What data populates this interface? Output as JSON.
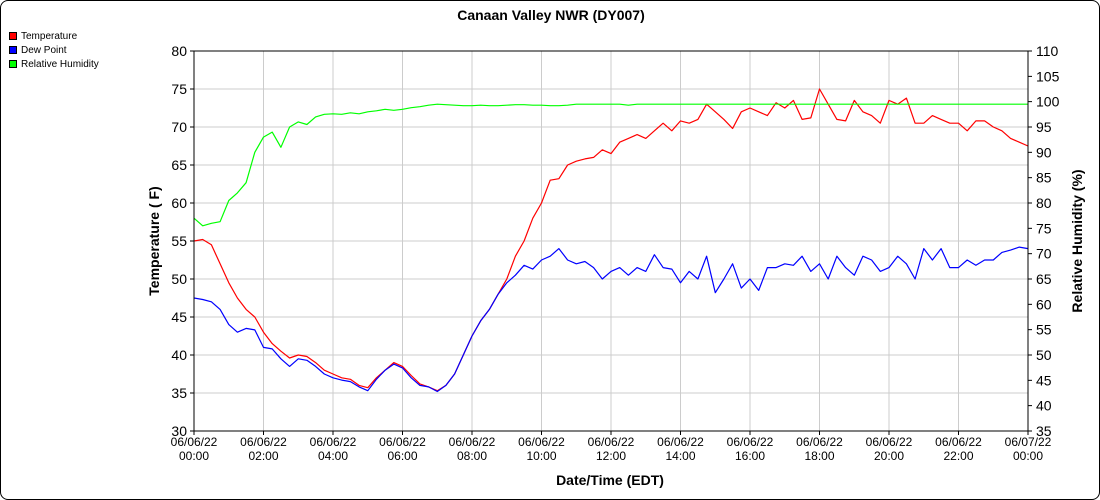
{
  "chart_data": {
    "type": "line",
    "title": "Canaan Valley NWR (DY007)",
    "xlabel": "Date/Time (EDT)",
    "ylabel_left": "Temperature ( F)",
    "ylabel_right": "Relative Humidity (%)",
    "ylim_left": [
      30,
      80
    ],
    "ylim_right": [
      35,
      110
    ],
    "yticks_left": [
      "30",
      "35",
      "40",
      "45",
      "50",
      "55",
      "60",
      "65",
      "70",
      "75",
      "80"
    ],
    "yticks_right": [
      "35",
      "40",
      "45",
      "50",
      "55",
      "60",
      "65",
      "70",
      "75",
      "80",
      "85",
      "90",
      "95",
      "100",
      "105",
      "110"
    ],
    "x_ticks": [
      [
        "06/06/22",
        "00:00"
      ],
      [
        "06/06/22",
        "02:00"
      ],
      [
        "06/06/22",
        "04:00"
      ],
      [
        "06/06/22",
        "06:00"
      ],
      [
        "06/06/22",
        "08:00"
      ],
      [
        "06/06/22",
        "10:00"
      ],
      [
        "06/06/22",
        "12:00"
      ],
      [
        "06/06/22",
        "14:00"
      ],
      [
        "06/06/22",
        "16:00"
      ],
      [
        "06/06/22",
        "18:00"
      ],
      [
        "06/06/22",
        "20:00"
      ],
      [
        "06/06/22",
        "22:00"
      ],
      [
        "06/07/22",
        "00:00"
      ]
    ],
    "x_range_hours": [
      0,
      24
    ],
    "grid": true,
    "legend_position": "top-left",
    "series": [
      {
        "name": "Temperature",
        "axis": "left",
        "color": "#ff0000",
        "points": [
          [
            0,
            55
          ],
          [
            0.25,
            55.2
          ],
          [
            0.5,
            54.5
          ],
          [
            0.75,
            52
          ],
          [
            1,
            49.5
          ],
          [
            1.25,
            47.5
          ],
          [
            1.5,
            46
          ],
          [
            1.75,
            45
          ],
          [
            2,
            43
          ],
          [
            2.25,
            41.5
          ],
          [
            2.5,
            40.5
          ],
          [
            2.75,
            39.6
          ],
          [
            3,
            40
          ],
          [
            3.25,
            39.8
          ],
          [
            3.5,
            39
          ],
          [
            3.75,
            38
          ],
          [
            4,
            37.5
          ],
          [
            4.25,
            37
          ],
          [
            4.5,
            36.8
          ],
          [
            4.75,
            36
          ],
          [
            5,
            35.7
          ],
          [
            5.25,
            37
          ],
          [
            5.5,
            38
          ],
          [
            5.75,
            39
          ],
          [
            6,
            38.5
          ],
          [
            6.25,
            37.3
          ],
          [
            6.5,
            36.2
          ],
          [
            6.75,
            35.8
          ],
          [
            7,
            35.3
          ],
          [
            7.25,
            36
          ],
          [
            7.5,
            37.5
          ],
          [
            7.75,
            40
          ],
          [
            8,
            42.5
          ],
          [
            8.25,
            44.5
          ],
          [
            8.5,
            46
          ],
          [
            8.75,
            48
          ],
          [
            9,
            50
          ],
          [
            9.25,
            53
          ],
          [
            9.5,
            55
          ],
          [
            9.75,
            58
          ],
          [
            10,
            60
          ],
          [
            10.25,
            63
          ],
          [
            10.5,
            63.2
          ],
          [
            10.75,
            65
          ],
          [
            11,
            65.5
          ],
          [
            11.25,
            65.8
          ],
          [
            11.5,
            66
          ],
          [
            11.75,
            67
          ],
          [
            12,
            66.5
          ],
          [
            12.25,
            68
          ],
          [
            12.5,
            68.5
          ],
          [
            12.75,
            69
          ],
          [
            13,
            68.5
          ],
          [
            13.25,
            69.5
          ],
          [
            13.5,
            70.5
          ],
          [
            13.75,
            69.5
          ],
          [
            14,
            70.8
          ],
          [
            14.25,
            70.5
          ],
          [
            14.5,
            71
          ],
          [
            14.75,
            73
          ],
          [
            15,
            72
          ],
          [
            15.25,
            71
          ],
          [
            15.5,
            69.8
          ],
          [
            15.75,
            72
          ],
          [
            16,
            72.5
          ],
          [
            16.25,
            72
          ],
          [
            16.5,
            71.5
          ],
          [
            16.75,
            73.2
          ],
          [
            17,
            72.5
          ],
          [
            17.25,
            73.5
          ],
          [
            17.5,
            71
          ],
          [
            17.75,
            71.2
          ],
          [
            18,
            75
          ],
          [
            18.25,
            73
          ],
          [
            18.5,
            71
          ],
          [
            18.75,
            70.8
          ],
          [
            19,
            73.5
          ],
          [
            19.25,
            72
          ],
          [
            19.5,
            71.5
          ],
          [
            19.75,
            70.5
          ],
          [
            20,
            73.5
          ],
          [
            20.25,
            73
          ],
          [
            20.5,
            73.8
          ],
          [
            20.75,
            70.5
          ],
          [
            21,
            70.5
          ],
          [
            21.25,
            71.5
          ],
          [
            21.5,
            71
          ],
          [
            21.75,
            70.5
          ],
          [
            22,
            70.5
          ],
          [
            22.25,
            69.5
          ],
          [
            22.5,
            70.8
          ],
          [
            22.75,
            70.8
          ],
          [
            23,
            70
          ],
          [
            23.25,
            69.5
          ],
          [
            23.5,
            68.5
          ],
          [
            23.75,
            68
          ],
          [
            24,
            67.5
          ]
        ]
      },
      {
        "name": "Dew Point",
        "axis": "left",
        "color": "#0000ff",
        "points": [
          [
            0,
            47.5
          ],
          [
            0.25,
            47.3
          ],
          [
            0.5,
            47
          ],
          [
            0.75,
            46
          ],
          [
            1,
            44
          ],
          [
            1.25,
            43
          ],
          [
            1.5,
            43.5
          ],
          [
            1.75,
            43.3
          ],
          [
            2,
            41
          ],
          [
            2.25,
            40.8
          ],
          [
            2.5,
            39.5
          ],
          [
            2.75,
            38.5
          ],
          [
            3,
            39.5
          ],
          [
            3.25,
            39.3
          ],
          [
            3.5,
            38.5
          ],
          [
            3.75,
            37.5
          ],
          [
            4,
            37
          ],
          [
            4.25,
            36.7
          ],
          [
            4.5,
            36.5
          ],
          [
            4.75,
            35.8
          ],
          [
            5,
            35.3
          ],
          [
            5.25,
            36.8
          ],
          [
            5.5,
            38
          ],
          [
            5.75,
            38.8
          ],
          [
            6,
            38.3
          ],
          [
            6.25,
            37
          ],
          [
            6.5,
            36
          ],
          [
            6.75,
            35.8
          ],
          [
            7,
            35.2
          ],
          [
            7.25,
            36
          ],
          [
            7.5,
            37.5
          ],
          [
            7.75,
            40
          ],
          [
            8,
            42.5
          ],
          [
            8.25,
            44.5
          ],
          [
            8.5,
            46
          ],
          [
            8.75,
            48
          ],
          [
            9,
            49.5
          ],
          [
            9.25,
            50.5
          ],
          [
            9.5,
            51.8
          ],
          [
            9.75,
            51.3
          ],
          [
            10,
            52.5
          ],
          [
            10.25,
            53
          ],
          [
            10.5,
            54
          ],
          [
            10.75,
            52.5
          ],
          [
            11,
            52
          ],
          [
            11.25,
            52.3
          ],
          [
            11.5,
            51.5
          ],
          [
            11.75,
            50
          ],
          [
            12,
            51
          ],
          [
            12.25,
            51.5
          ],
          [
            12.5,
            50.5
          ],
          [
            12.75,
            51.5
          ],
          [
            13,
            51
          ],
          [
            13.25,
            53.2
          ],
          [
            13.5,
            51.5
          ],
          [
            13.75,
            51.3
          ],
          [
            14,
            49.5
          ],
          [
            14.25,
            51
          ],
          [
            14.5,
            50
          ],
          [
            14.75,
            53
          ],
          [
            15,
            48.2
          ],
          [
            15.25,
            50
          ],
          [
            15.5,
            52
          ],
          [
            15.75,
            48.8
          ],
          [
            16,
            50
          ],
          [
            16.25,
            48.5
          ],
          [
            16.5,
            51.5
          ],
          [
            16.75,
            51.5
          ],
          [
            17,
            52
          ],
          [
            17.25,
            51.8
          ],
          [
            17.5,
            53
          ],
          [
            17.75,
            51
          ],
          [
            18,
            52
          ],
          [
            18.25,
            50
          ],
          [
            18.5,
            53
          ],
          [
            18.75,
            51.5
          ],
          [
            19,
            50.5
          ],
          [
            19.25,
            53
          ],
          [
            19.5,
            52.5
          ],
          [
            19.75,
            51
          ],
          [
            20,
            51.5
          ],
          [
            20.25,
            53
          ],
          [
            20.5,
            52
          ],
          [
            20.75,
            50
          ],
          [
            21,
            54
          ],
          [
            21.25,
            52.5
          ],
          [
            21.5,
            54
          ],
          [
            21.75,
            51.5
          ],
          [
            22,
            51.5
          ],
          [
            22.25,
            52.5
          ],
          [
            22.5,
            51.8
          ],
          [
            22.75,
            52.5
          ],
          [
            23,
            52.5
          ],
          [
            23.25,
            53.5
          ],
          [
            23.5,
            53.8
          ],
          [
            23.75,
            54.2
          ],
          [
            24,
            54
          ]
        ]
      },
      {
        "name": "Relative Humidity",
        "axis": "right",
        "color": "#00ff00",
        "points": [
          [
            0,
            77
          ],
          [
            0.25,
            75.5
          ],
          [
            0.5,
            76
          ],
          [
            0.75,
            76.3
          ],
          [
            1,
            80.5
          ],
          [
            1.25,
            82
          ],
          [
            1.5,
            84
          ],
          [
            1.75,
            90
          ],
          [
            2,
            93
          ],
          [
            2.25,
            94
          ],
          [
            2.5,
            91
          ],
          [
            2.75,
            95
          ],
          [
            3,
            96
          ],
          [
            3.25,
            95.5
          ],
          [
            3.5,
            97
          ],
          [
            3.75,
            97.5
          ],
          [
            4,
            97.6
          ],
          [
            4.25,
            97.5
          ],
          [
            4.5,
            97.8
          ],
          [
            4.75,
            97.6
          ],
          [
            5,
            98
          ],
          [
            5.25,
            98.2
          ],
          [
            5.5,
            98.5
          ],
          [
            5.75,
            98.3
          ],
          [
            6,
            98.5
          ],
          [
            6.25,
            98.8
          ],
          [
            6.5,
            99
          ],
          [
            6.75,
            99.3
          ],
          [
            7,
            99.5
          ],
          [
            7.25,
            99.4
          ],
          [
            7.5,
            99.3
          ],
          [
            7.75,
            99.2
          ],
          [
            8,
            99.2
          ],
          [
            8.25,
            99.3
          ],
          [
            8.5,
            99.2
          ],
          [
            8.75,
            99.2
          ],
          [
            9,
            99.3
          ],
          [
            9.25,
            99.4
          ],
          [
            9.5,
            99.4
          ],
          [
            9.75,
            99.3
          ],
          [
            10,
            99.3
          ],
          [
            10.25,
            99.2
          ],
          [
            10.5,
            99.2
          ],
          [
            10.75,
            99.3
          ],
          [
            11,
            99.5
          ],
          [
            11.25,
            99.5
          ],
          [
            11.5,
            99.5
          ],
          [
            11.75,
            99.5
          ],
          [
            12,
            99.5
          ],
          [
            12.25,
            99.5
          ],
          [
            12.5,
            99.3
          ],
          [
            12.75,
            99.5
          ],
          [
            13,
            99.5
          ],
          [
            13.25,
            99.5
          ],
          [
            13.5,
            99.5
          ],
          [
            13.75,
            99.5
          ],
          [
            14,
            99.5
          ],
          [
            14.25,
            99.5
          ],
          [
            14.5,
            99.5
          ],
          [
            14.75,
            99.5
          ],
          [
            15,
            99.5
          ],
          [
            15.25,
            99.5
          ],
          [
            15.5,
            99.5
          ],
          [
            15.75,
            99.5
          ],
          [
            16,
            99.5
          ],
          [
            16.25,
            99.5
          ],
          [
            16.5,
            99.5
          ],
          [
            16.75,
            99.5
          ],
          [
            17,
            99.5
          ],
          [
            17.25,
            99.5
          ],
          [
            17.5,
            99.5
          ],
          [
            17.75,
            99.5
          ],
          [
            18,
            99.5
          ],
          [
            18.25,
            99.5
          ],
          [
            18.5,
            99.5
          ],
          [
            18.75,
            99.5
          ],
          [
            19,
            99.5
          ],
          [
            19.25,
            99.5
          ],
          [
            19.5,
            99.5
          ],
          [
            19.75,
            99.5
          ],
          [
            20,
            99.5
          ],
          [
            20.25,
            99.5
          ],
          [
            20.5,
            99.5
          ],
          [
            20.75,
            99.5
          ],
          [
            21,
            99.5
          ],
          [
            21.25,
            99.5
          ],
          [
            21.5,
            99.5
          ],
          [
            21.75,
            99.5
          ],
          [
            22,
            99.5
          ],
          [
            22.25,
            99.5
          ],
          [
            22.5,
            99.5
          ],
          [
            22.75,
            99.5
          ],
          [
            23,
            99.5
          ],
          [
            23.25,
            99.5
          ],
          [
            23.5,
            99.5
          ],
          [
            23.75,
            99.5
          ],
          [
            24,
            99.5
          ]
        ]
      }
    ]
  },
  "legend": [
    {
      "name": "Temperature",
      "color": "#ff0000"
    },
    {
      "name": "Dew Point",
      "color": "#0000ff"
    },
    {
      "name": "Relative Humidity",
      "color": "#00ff00"
    }
  ]
}
